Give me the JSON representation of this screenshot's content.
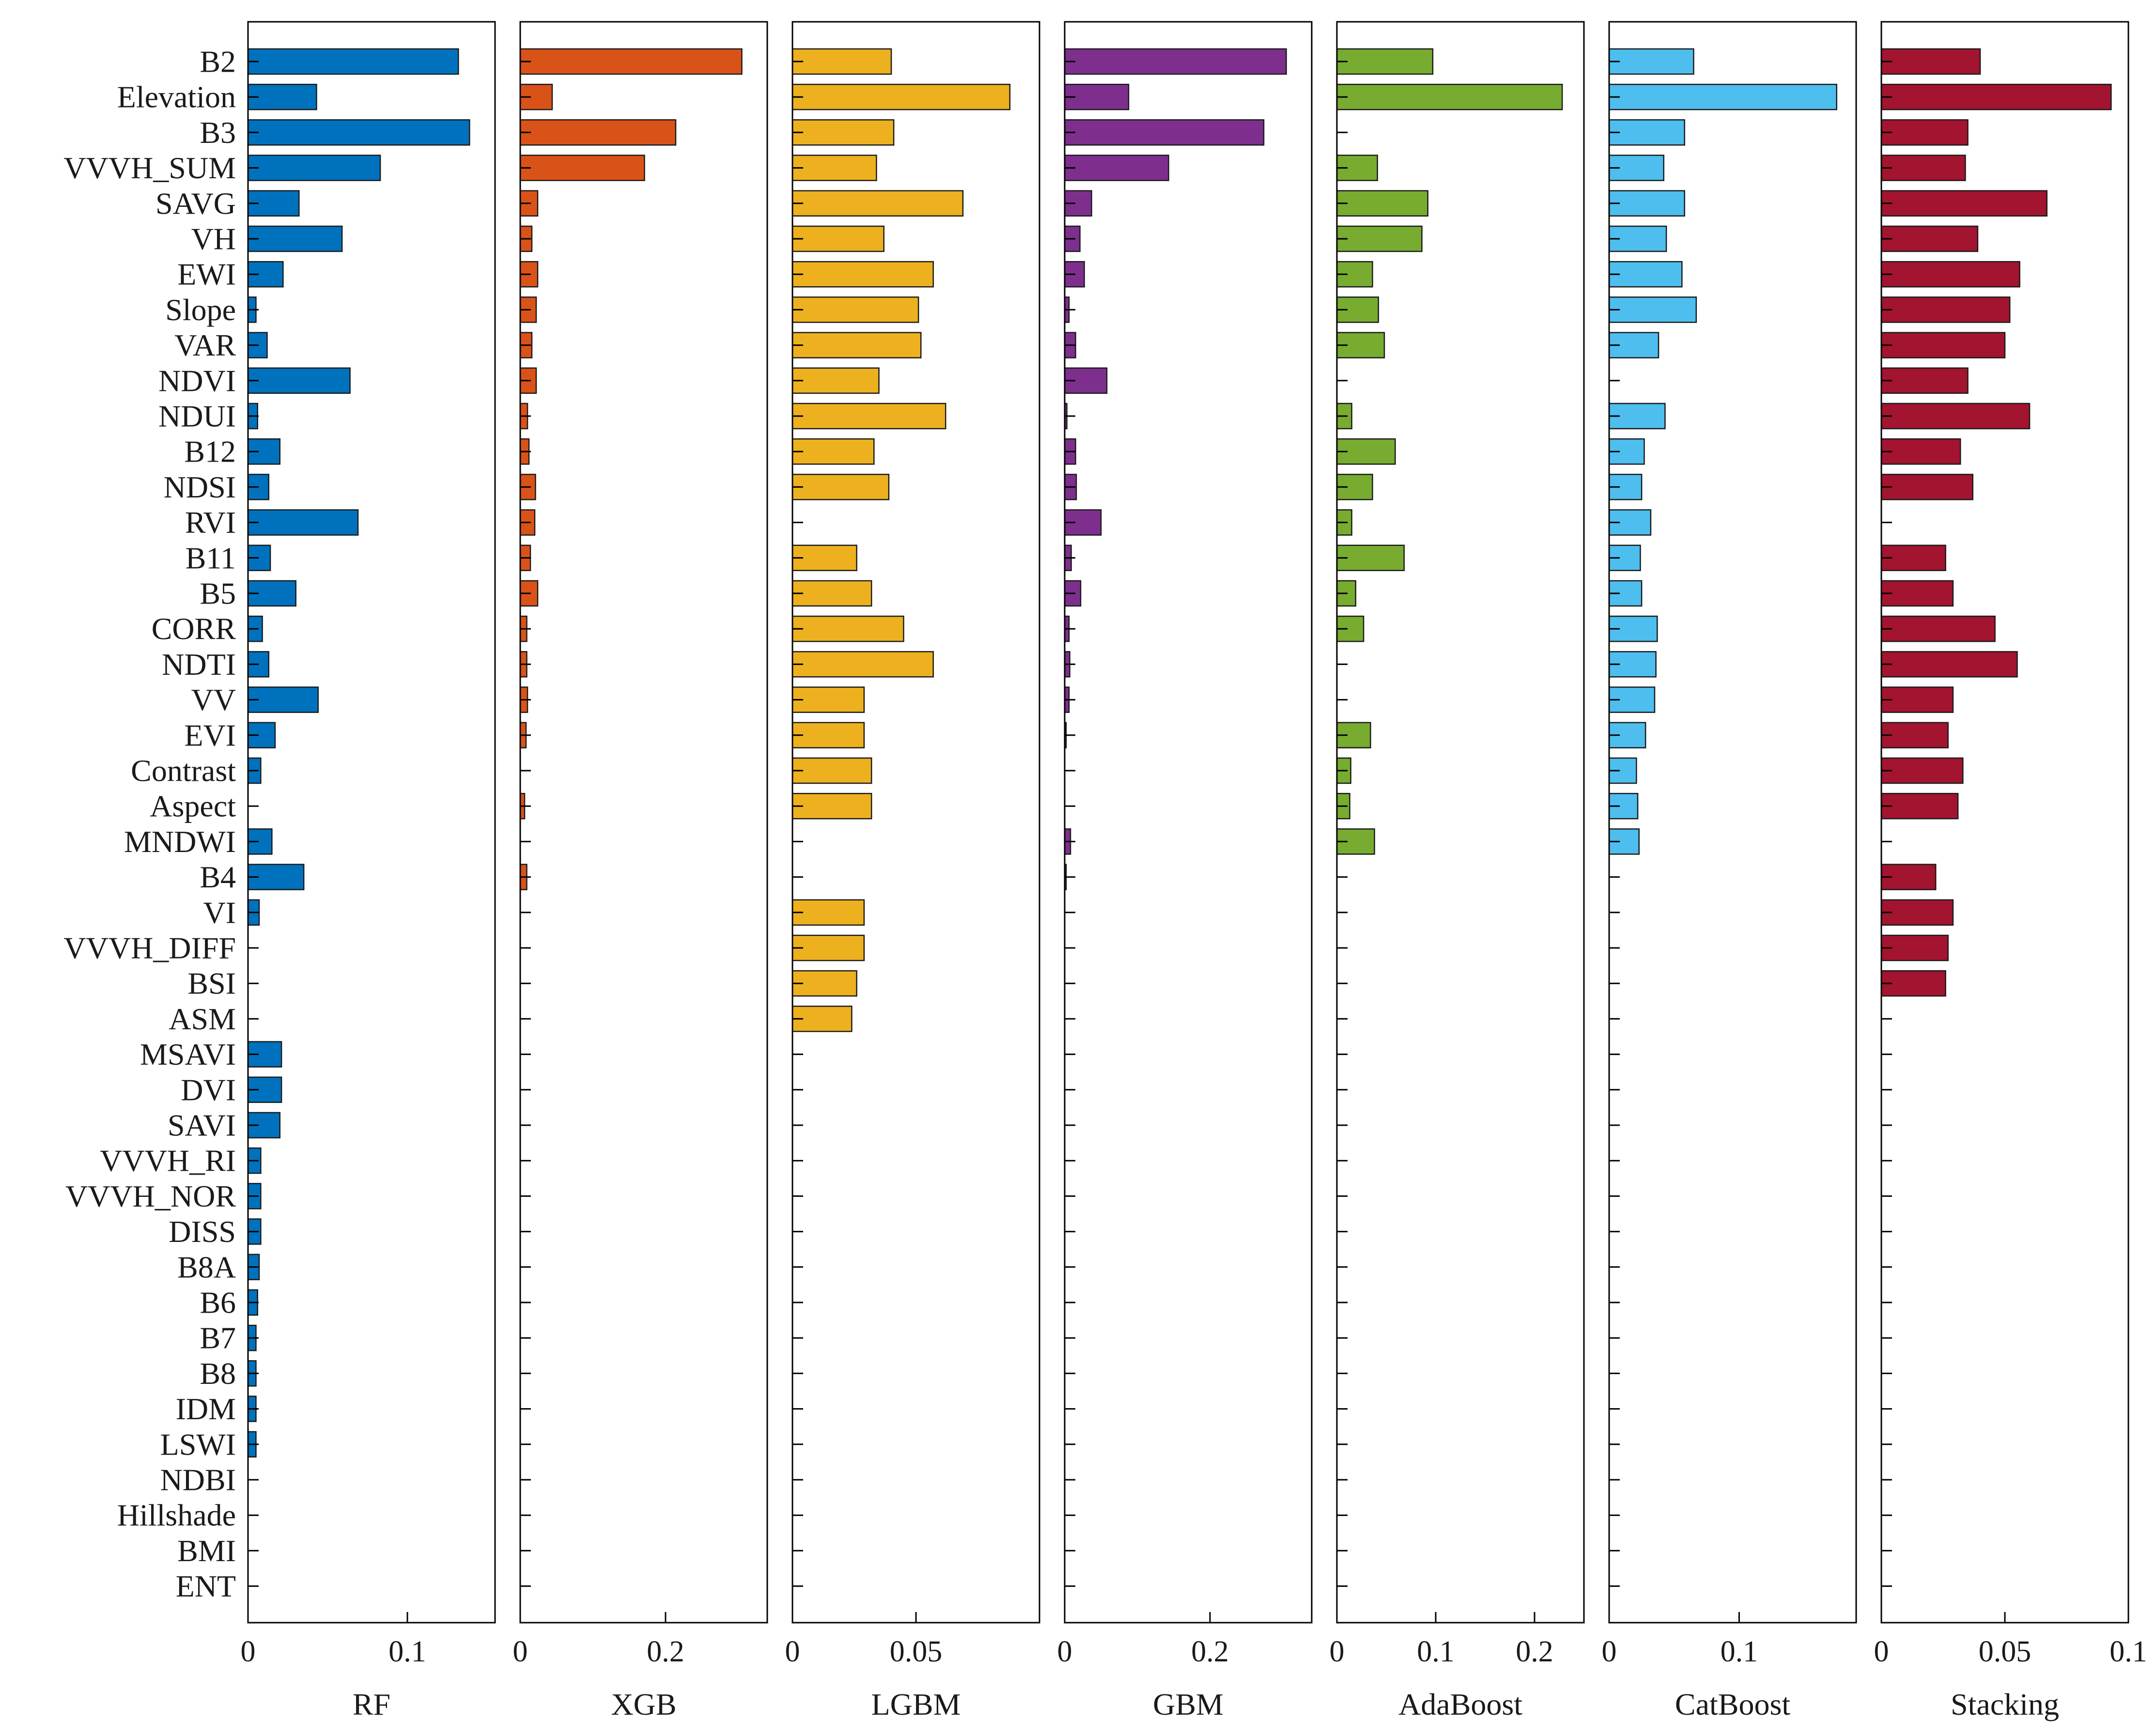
{
  "chart_data": {
    "type": "bar",
    "orientation": "horizontal",
    "title": "",
    "categories": [
      "B2",
      "Elevation",
      "B3",
      "VVVH_SUM",
      "SAVG",
      "VH",
      "EWI",
      "Slope",
      "VAR",
      "NDVI",
      "NDUI",
      "B12",
      "NDSI",
      "RVI",
      "B11",
      "B5",
      "CORR",
      "NDTI",
      "VV",
      "EVI",
      "Contrast",
      "Aspect",
      "MNDWI",
      "B4",
      "VI",
      "VVVH_DIFF",
      "BSI",
      "ASM",
      "MSAVI",
      "DVI",
      "SAVI",
      "VVVH_RI",
      "VVVH_NOR",
      "DISS",
      "B8A",
      "B6",
      "B7",
      "B8",
      "IDM",
      "LSWI",
      "NDBI",
      "Hillshade",
      "BMI",
      "ENT"
    ],
    "series": [
      {
        "name": "RF",
        "color": "#0072BD",
        "xlim": [
          0,
          0.155
        ],
        "ticks": [
          0,
          0.1
        ],
        "tick_labels": [
          "0",
          "0.1"
        ],
        "values": [
          0.132,
          0.043,
          0.139,
          0.083,
          0.032,
          0.059,
          0.022,
          0.005,
          0.012,
          0.064,
          0.006,
          0.02,
          0.013,
          0.069,
          0.014,
          0.03,
          0.009,
          0.013,
          0.044,
          0.017,
          0.008,
          0,
          0.015,
          0.035,
          0.007,
          0,
          0,
          0,
          0.021,
          0.021,
          0.02,
          0.008,
          0.008,
          0.008,
          0.007,
          0.006,
          0.005,
          0.005,
          0.005,
          0.005,
          0,
          0,
          0,
          0
        ]
      },
      {
        "name": "XGB",
        "color": "#D95319",
        "xlim": [
          0,
          0.34
        ],
        "ticks": [
          0,
          0.2
        ],
        "tick_labels": [
          "0",
          "0.2"
        ],
        "values": [
          0.305,
          0.044,
          0.214,
          0.171,
          0.024,
          0.016,
          0.024,
          0.022,
          0.016,
          0.022,
          0.01,
          0.012,
          0.021,
          0.02,
          0.014,
          0.024,
          0.009,
          0.009,
          0.01,
          0.008,
          0,
          0.006,
          0,
          0.009,
          0,
          0,
          0,
          0,
          0,
          0,
          0,
          0,
          0,
          0,
          0,
          0,
          0,
          0,
          0,
          0,
          0,
          0,
          0,
          0
        ]
      },
      {
        "name": "LGBM",
        "color": "#EDB120",
        "xlim": [
          0,
          0.1
        ],
        "ticks": [
          0,
          0.05
        ],
        "tick_labels": [
          "0",
          "0.05"
        ],
        "values": [
          0.04,
          0.088,
          0.041,
          0.034,
          0.069,
          0.037,
          0.057,
          0.051,
          0.052,
          0.035,
          0.062,
          0.033,
          0.039,
          0,
          0.026,
          0.032,
          0.045,
          0.057,
          0.029,
          0.029,
          0.032,
          0.032,
          0,
          0,
          0.029,
          0.029,
          0.026,
          0.024,
          0,
          0,
          0,
          0,
          0,
          0,
          0,
          0,
          0,
          0,
          0,
          0,
          0,
          0,
          0,
          0
        ]
      },
      {
        "name": "GBM",
        "color": "#7E2F8E",
        "xlim": [
          0,
          0.34
        ],
        "ticks": [
          0,
          0.2
        ],
        "tick_labels": [
          "0",
          "0.2"
        ],
        "values": [
          0.305,
          0.088,
          0.274,
          0.143,
          0.037,
          0.021,
          0.027,
          0.006,
          0.015,
          0.058,
          0.003,
          0.015,
          0.016,
          0.05,
          0.009,
          0.022,
          0.006,
          0.007,
          0.006,
          0.002,
          0,
          0,
          0.008,
          0.002,
          0,
          0,
          0,
          0,
          0,
          0,
          0,
          0,
          0,
          0,
          0,
          0,
          0,
          0,
          0,
          0,
          0,
          0,
          0,
          0
        ]
      },
      {
        "name": "AdaBoost",
        "color": "#77AC30",
        "xlim": [
          0,
          0.25
        ],
        "ticks": [
          0,
          0.1,
          0.2
        ],
        "tick_labels": [
          "0",
          "0.1",
          "0.2"
        ],
        "values": [
          0.097,
          0.228,
          0,
          0.041,
          0.092,
          0.086,
          0.036,
          0.042,
          0.048,
          0,
          0.015,
          0.059,
          0.036,
          0.015,
          0.068,
          0.019,
          0.027,
          0,
          0,
          0.034,
          0.014,
          0.013,
          0.038,
          0,
          0,
          0,
          0,
          0,
          0,
          0,
          0,
          0,
          0,
          0,
          0,
          0,
          0,
          0,
          0,
          0,
          0,
          0,
          0,
          0
        ]
      },
      {
        "name": "CatBoost",
        "color": "#4DBEEE",
        "xlim": [
          0,
          0.19
        ],
        "ticks": [
          0,
          0.1
        ],
        "tick_labels": [
          "0",
          "0.1"
        ],
        "values": [
          0.065,
          0.175,
          0.058,
          0.042,
          0.058,
          0.044,
          0.056,
          0.067,
          0.038,
          0,
          0.043,
          0.027,
          0.025,
          0.032,
          0.024,
          0.025,
          0.037,
          0.036,
          0.035,
          0.028,
          0.021,
          0.022,
          0.023,
          0,
          0,
          0,
          0,
          0,
          0,
          0,
          0,
          0,
          0,
          0,
          0,
          0,
          0,
          0,
          0,
          0,
          0,
          0,
          0,
          0
        ]
      },
      {
        "name": "Stacking",
        "color": "#A2142F",
        "xlim": [
          0,
          0.1
        ],
        "ticks": [
          0,
          0.05,
          0.1
        ],
        "tick_labels": [
          "0",
          "0.05",
          "0.1"
        ],
        "values": [
          0.04,
          0.093,
          0.035,
          0.034,
          0.067,
          0.039,
          0.056,
          0.052,
          0.05,
          0.035,
          0.06,
          0.032,
          0.037,
          0,
          0.026,
          0.029,
          0.046,
          0.055,
          0.029,
          0.027,
          0.033,
          0.031,
          0,
          0.022,
          0.029,
          0.027,
          0.026,
          0,
          0,
          0,
          0,
          0,
          0,
          0,
          0,
          0,
          0,
          0,
          0,
          0,
          0,
          0,
          0,
          0
        ]
      }
    ],
    "xlabel": "",
    "ylabel": "",
    "grid": false,
    "legend": "none"
  }
}
